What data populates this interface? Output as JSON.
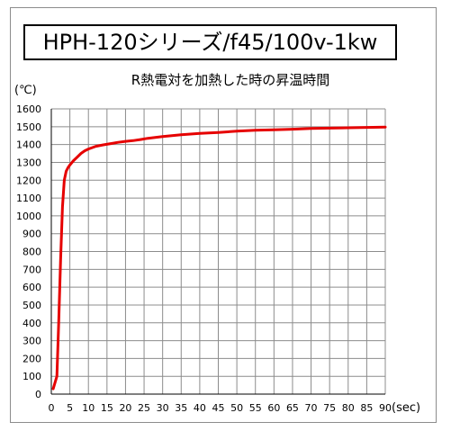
{
  "chart_data": {
    "type": "line",
    "title": "HPH-120シリーズ/f45/100v-1kw",
    "subtitle": "R熱電対を加熱した時の昇温時間",
    "xlabel": "(sec)",
    "ylabel": "(℃)",
    "xlim": [
      0,
      90
    ],
    "ylim": [
      0,
      1600
    ],
    "xticks": [
      0,
      5,
      10,
      15,
      20,
      25,
      30,
      35,
      40,
      45,
      50,
      55,
      60,
      65,
      70,
      75,
      80,
      85,
      90
    ],
    "yticks": [
      0,
      100,
      200,
      300,
      400,
      500,
      600,
      700,
      800,
      900,
      1000,
      1100,
      1200,
      1300,
      1400,
      1500,
      1600
    ],
    "grid": true,
    "line_color": "#e60000",
    "series": [
      {
        "x": [
          0.5,
          1.5,
          2,
          2.5,
          3,
          3.5,
          4,
          4.5,
          5,
          6,
          7,
          8,
          9,
          10,
          12,
          14,
          16,
          18,
          20,
          22,
          24,
          26,
          28,
          30,
          35,
          40,
          45,
          50,
          55,
          60,
          65,
          70,
          75,
          80,
          85,
          90
        ],
        "y": [
          30,
          100,
          400,
          750,
          1050,
          1200,
          1250,
          1270,
          1285,
          1310,
          1330,
          1350,
          1365,
          1375,
          1390,
          1398,
          1405,
          1412,
          1418,
          1422,
          1428,
          1435,
          1440,
          1445,
          1455,
          1462,
          1468,
          1475,
          1480,
          1483,
          1486,
          1490,
          1492,
          1494,
          1496,
          1498
        ]
      }
    ]
  }
}
